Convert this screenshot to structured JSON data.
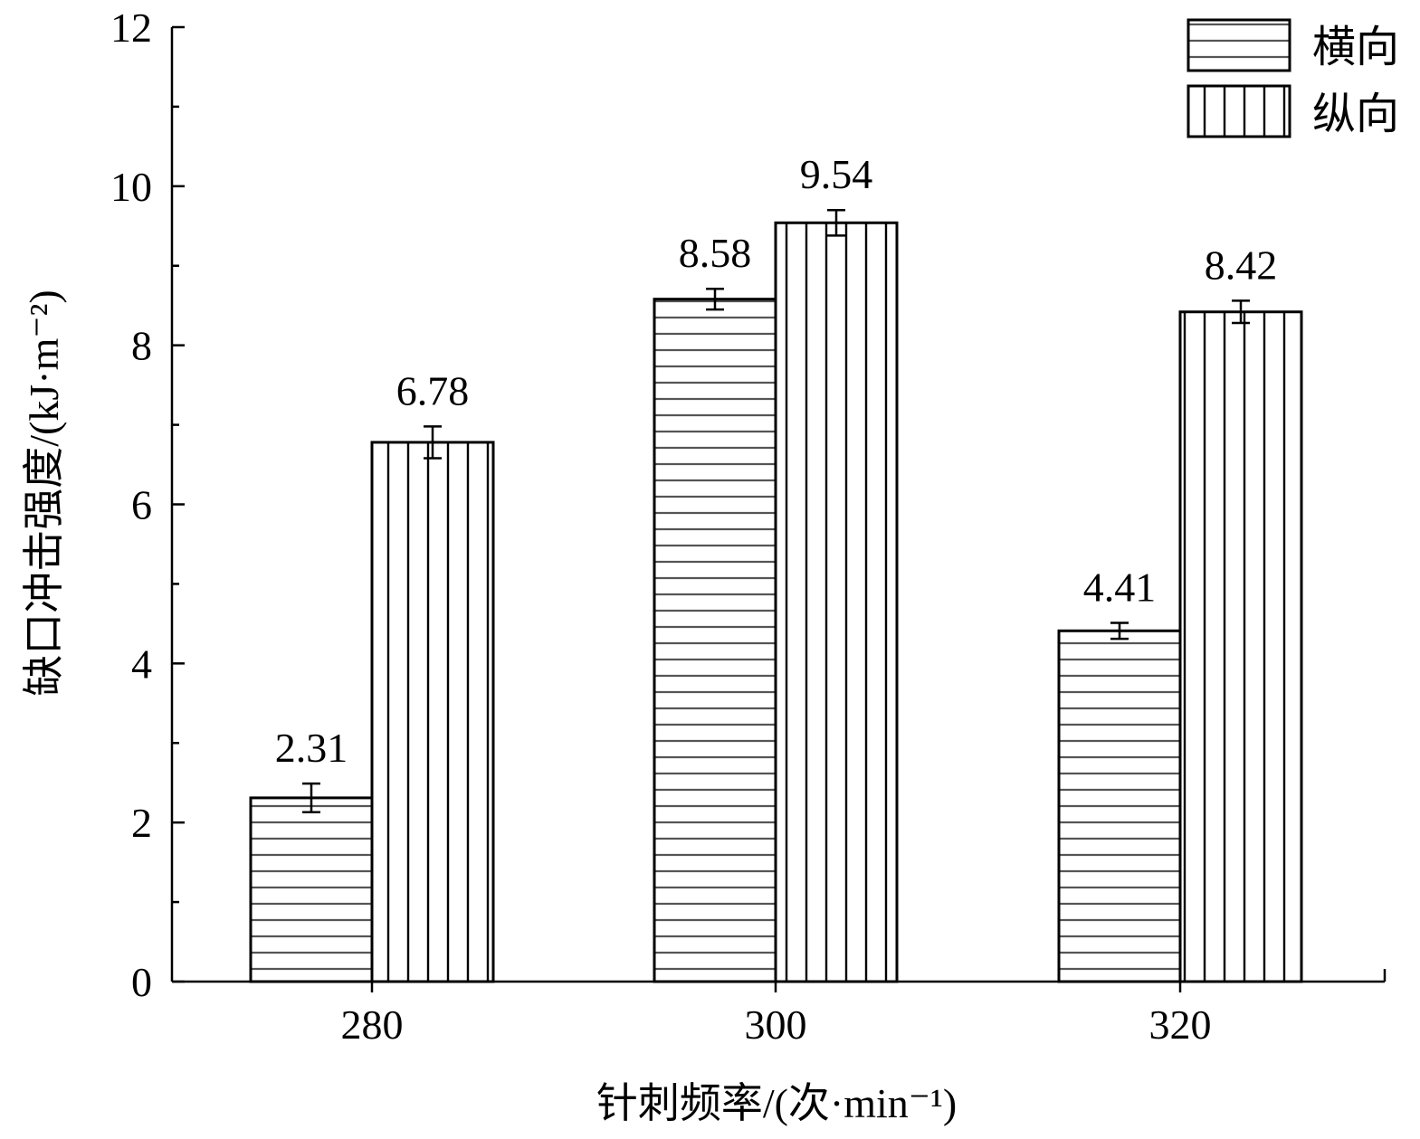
{
  "chart_data": {
    "type": "bar",
    "categories": [
      "280",
      "300",
      "320"
    ],
    "series": [
      {
        "name": "横向",
        "values": [
          2.31,
          8.58,
          4.41
        ],
        "errors": [
          0.18,
          0.13,
          0.1
        ],
        "value_labels": [
          "2.31",
          "8.58",
          "4.41"
        ],
        "pattern": "horizontal-hatch"
      },
      {
        "name": "纵向",
        "values": [
          6.78,
          9.54,
          8.42
        ],
        "errors": [
          0.2,
          0.16,
          0.14
        ],
        "value_labels": [
          "6.78",
          "9.54",
          "8.42"
        ],
        "pattern": "vertical-hatch"
      }
    ],
    "xlabel": "针刺频率/(次·min⁻¹)",
    "ylabel": "缺口冲击强度/(kJ·m⁻²)",
    "ylim": [
      0,
      12
    ],
    "yticks": [
      "0",
      "2",
      "4",
      "6",
      "8",
      "10",
      "12"
    ],
    "legend_position": "top-right",
    "grid": false,
    "colors": {
      "hatch_horizontal": "#555555",
      "hatch_vertical": "#000000",
      "outline": "#000000"
    }
  }
}
